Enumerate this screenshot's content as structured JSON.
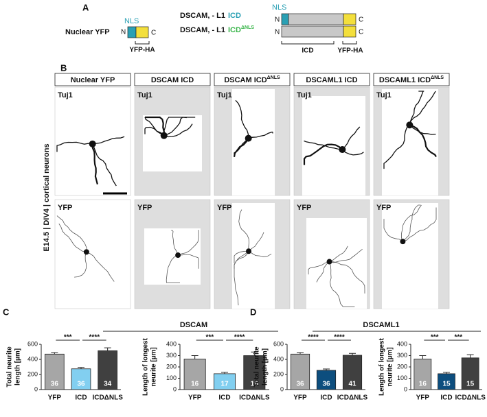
{
  "panel_a": {
    "label": "A",
    "nuclear": {
      "name": "Nuclear YFP",
      "n": "N",
      "nls": "NLS",
      "c": "C",
      "tag": "YFP-HA"
    },
    "construct_1": {
      "prefix": "DSCAM, - L1",
      "highlight": "ICD"
    },
    "construct_2": {
      "prefix": "DSCAM, - L1",
      "highlight": "ICD",
      "sup": "ΔNLS"
    },
    "diagram": {
      "n": "N",
      "nls": "NLS",
      "c": "C",
      "icd": "ICD",
      "tag": "YFP-HA"
    }
  },
  "panel_b": {
    "label": "B",
    "side_label": "E14.5 | DIV4 | cortical neurons",
    "rows": [
      "Tuj1",
      "YFP"
    ],
    "columns": [
      {
        "text": "Nuclear YFP"
      },
      {
        "text": "DSCAM ICD"
      },
      {
        "text": "DSCAM ICD",
        "sup": "ΔNLS"
      },
      {
        "text": "DSCAML1 ICD"
      },
      {
        "text": "DSCAML1 ICD",
        "sup": "ΔNLS"
      }
    ]
  },
  "panel_c": {
    "label": "C",
    "title": "DSCAM"
  },
  "panel_d": {
    "label": "D",
    "title": "DSCAML1"
  },
  "chart_data": [
    {
      "type": "bar",
      "ylabel": [
        "Total neurite",
        "length [µm]"
      ],
      "categories": [
        "YFP",
        "ICD",
        "ICDΔNLS"
      ],
      "values": [
        470,
        275,
        515
      ],
      "errors": [
        20,
        18,
        38
      ],
      "n": [
        "36",
        "36",
        "34"
      ],
      "colors": [
        "#a6a6a6",
        "#82cff0",
        "#404040"
      ],
      "ylim": [
        0,
        600
      ],
      "yticks": [
        0,
        200,
        400,
        600
      ],
      "annotations": [
        "***",
        "****"
      ]
    },
    {
      "type": "bar",
      "ylabel": [
        "Length of longest",
        "neurite [µm]"
      ],
      "categories": [
        "YFP",
        "ICD",
        "ICDΔNLS"
      ],
      "values": [
        270,
        140,
        300
      ],
      "errors": [
        30,
        12,
        32
      ],
      "n": [
        "16",
        "17",
        "15"
      ],
      "colors": [
        "#a6a6a6",
        "#82cff0",
        "#404040"
      ],
      "ylim": [
        0,
        400
      ],
      "yticks": [
        0,
        100,
        200,
        300,
        400
      ],
      "annotations": [
        "***",
        "****"
      ]
    },
    {
      "type": "bar",
      "ylabel": [
        "Total neurite",
        "length [µm]"
      ],
      "categories": [
        "YFP",
        "ICD",
        "ICDΔNLS"
      ],
      "values": [
        470,
        255,
        455
      ],
      "errors": [
        20,
        18,
        25
      ],
      "n": [
        "36",
        "36",
        "41"
      ],
      "colors": [
        "#a6a6a6",
        "#0d4e7e",
        "#404040"
      ],
      "ylim": [
        0,
        600
      ],
      "yticks": [
        0,
        200,
        400,
        600
      ],
      "annotations": [
        "****",
        "****"
      ]
    },
    {
      "type": "bar",
      "ylabel": [
        "Length of longest",
        "neurite [µm]"
      ],
      "categories": [
        "YFP",
        "ICD",
        "ICDΔNLS"
      ],
      "values": [
        270,
        140,
        280
      ],
      "errors": [
        30,
        12,
        28
      ],
      "n": [
        "16",
        "15",
        "15"
      ],
      "colors": [
        "#a6a6a6",
        "#0d4e7e",
        "#404040"
      ],
      "ylim": [
        0,
        400
      ],
      "yticks": [
        0,
        100,
        200,
        300,
        400
      ],
      "annotations": [
        "***",
        "***"
      ]
    }
  ]
}
